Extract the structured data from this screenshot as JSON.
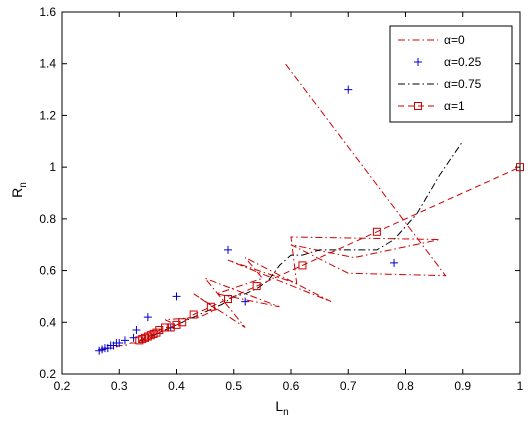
{
  "chart_data": {
    "type": "line",
    "title": "",
    "xlabel": "L",
    "xlabel_sub": "n",
    "ylabel": "R",
    "ylabel_sub": "n",
    "xlim": [
      0.2,
      1.0
    ],
    "ylim": [
      0.2,
      1.6
    ],
    "xticks": [
      0.2,
      0.3,
      0.4,
      0.5,
      0.6,
      0.7,
      0.8,
      0.9,
      1.0
    ],
    "yticks": [
      0.2,
      0.4,
      0.6,
      0.8,
      1.0,
      1.2,
      1.4,
      1.6
    ],
    "xtick_labels": [
      "0.2",
      "0.3",
      "0.4",
      "0.5",
      "0.6",
      "0.7",
      "0.8",
      "0.9",
      "1"
    ],
    "ytick_labels": [
      "0.2",
      "0.4",
      "0.6",
      "0.8",
      "1",
      "1.2",
      "1.4",
      "1.6"
    ],
    "grid": false,
    "legend_position": "top-right",
    "series": [
      {
        "name": "α=0",
        "color": "#cc0000",
        "line": "dash-dot",
        "marker": "none",
        "x": [
          0.27,
          0.28,
          0.29,
          0.3,
          0.31,
          0.32,
          0.33,
          0.34,
          0.35,
          0.36,
          0.37,
          0.38,
          0.4,
          0.38,
          0.44,
          0.47,
          0.43,
          0.52,
          0.45,
          0.58,
          0.47,
          0.55,
          0.52,
          0.67,
          0.49,
          0.61,
          0.6,
          0.86,
          0.71,
          0.6,
          0.7,
          0.87,
          0.59
        ],
        "y": [
          0.29,
          0.3,
          0.3,
          0.31,
          0.31,
          0.32,
          0.32,
          0.33,
          0.33,
          0.35,
          0.36,
          0.37,
          0.39,
          0.41,
          0.42,
          0.45,
          0.51,
          0.38,
          0.57,
          0.46,
          0.51,
          0.57,
          0.65,
          0.48,
          0.64,
          0.55,
          0.73,
          0.72,
          0.65,
          0.7,
          0.59,
          0.58,
          1.4
        ]
      },
      {
        "name": "α=0.25",
        "color": "#0000cc",
        "line": "none",
        "marker": "plus",
        "x": [
          0.265,
          0.27,
          0.275,
          0.28,
          0.285,
          0.29,
          0.295,
          0.3,
          0.31,
          0.325,
          0.33,
          0.35,
          0.39,
          0.4,
          0.49,
          0.52,
          0.7,
          0.78
        ],
        "y": [
          0.29,
          0.295,
          0.3,
          0.3,
          0.31,
          0.31,
          0.32,
          0.32,
          0.33,
          0.34,
          0.37,
          0.42,
          0.38,
          0.5,
          0.68,
          0.48,
          1.3,
          0.63
        ]
      },
      {
        "name": "α=0.75",
        "color": "#000000",
        "line": "dash-dot",
        "marker": "none",
        "x": [
          0.335,
          0.34,
          0.345,
          0.35,
          0.355,
          0.36,
          0.37,
          0.38,
          0.39,
          0.4,
          0.42,
          0.44,
          0.46,
          0.48,
          0.5,
          0.52,
          0.54,
          0.56,
          0.58,
          0.6,
          0.62,
          0.65,
          0.7,
          0.75,
          0.78,
          0.82,
          0.86,
          0.9
        ],
        "y": [
          0.33,
          0.33,
          0.34,
          0.34,
          0.35,
          0.35,
          0.36,
          0.37,
          0.38,
          0.39,
          0.41,
          0.43,
          0.45,
          0.47,
          0.5,
          0.51,
          0.53,
          0.56,
          0.62,
          0.66,
          0.66,
          0.68,
          0.68,
          0.68,
          0.72,
          0.82,
          0.97,
          1.1
        ]
      },
      {
        "name": "α=1",
        "color": "#cc0000",
        "line": "dashed",
        "marker": "square",
        "x": [
          0.335,
          0.34,
          0.345,
          0.35,
          0.355,
          0.36,
          0.365,
          0.37,
          0.38,
          0.39,
          0.4,
          0.41,
          0.43,
          0.46,
          0.49,
          0.54,
          0.62,
          0.75,
          1.0
        ],
        "y": [
          0.33,
          0.335,
          0.34,
          0.345,
          0.35,
          0.355,
          0.36,
          0.37,
          0.38,
          0.38,
          0.39,
          0.4,
          0.43,
          0.46,
          0.49,
          0.54,
          0.62,
          0.75,
          1.0
        ]
      }
    ]
  }
}
